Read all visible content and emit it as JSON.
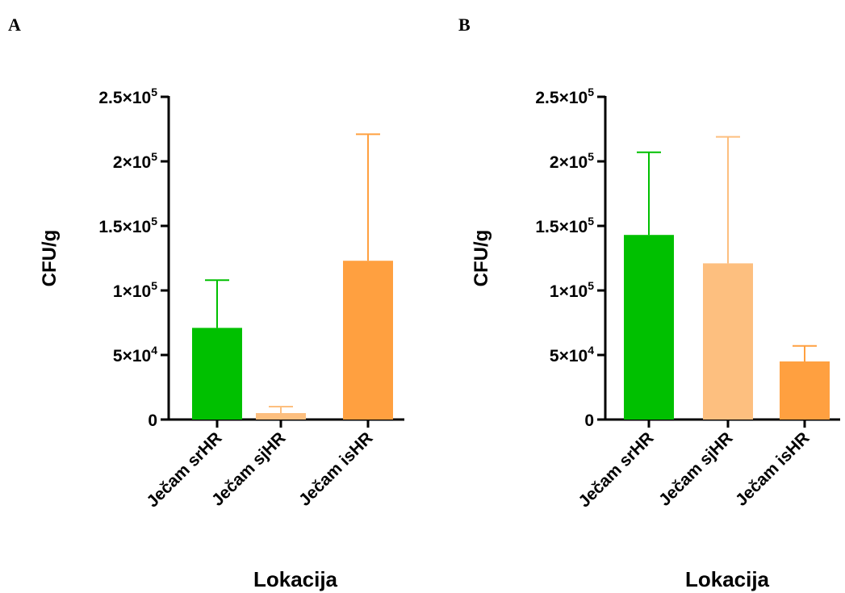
{
  "panels": [
    {
      "letter": "A",
      "chart_data": {
        "type": "bar",
        "categories": [
          "Ječam srHR",
          "Ječam sjHR",
          "Ječam isHR"
        ],
        "values": [
          71000,
          5000,
          123000
        ],
        "error_upper": [
          108000,
          10000,
          221000
        ],
        "colors": [
          "#00c000",
          "#fdbf7f",
          "#ffa040"
        ],
        "ylabel": "CFU/g",
        "xlabel": "Lokacija",
        "ylim": [
          0,
          250000
        ],
        "yticks": [
          {
            "value": 0,
            "base": "0",
            "exp": ""
          },
          {
            "value": 50000,
            "base": "5×10",
            "exp": "4"
          },
          {
            "value": 100000,
            "base": "1×10",
            "exp": "5"
          },
          {
            "value": 150000,
            "base": "1.5×10",
            "exp": "5"
          },
          {
            "value": 200000,
            "base": "2×10",
            "exp": "5"
          },
          {
            "value": 250000,
            "base": "2.5×10",
            "exp": "5"
          }
        ]
      }
    },
    {
      "letter": "B",
      "chart_data": {
        "type": "bar",
        "categories": [
          "Ječam srHR",
          "Ječam sjHR",
          "Ječam isHR"
        ],
        "values": [
          143000,
          121000,
          45000
        ],
        "error_upper": [
          207000,
          219000,
          57000
        ],
        "colors": [
          "#00c000",
          "#fdbf7f",
          "#ffa040"
        ],
        "ylabel": "CFU/g",
        "xlabel": "Lokacija",
        "ylim": [
          0,
          250000
        ],
        "yticks": [
          {
            "value": 0,
            "base": "0",
            "exp": ""
          },
          {
            "value": 50000,
            "base": "5×10",
            "exp": "4"
          },
          {
            "value": 100000,
            "base": "1×10",
            "exp": "5"
          },
          {
            "value": 150000,
            "base": "1.5×10",
            "exp": "5"
          },
          {
            "value": 200000,
            "base": "2×10",
            "exp": "5"
          },
          {
            "value": 250000,
            "base": "2.5×10",
            "exp": "5"
          }
        ]
      }
    }
  ]
}
